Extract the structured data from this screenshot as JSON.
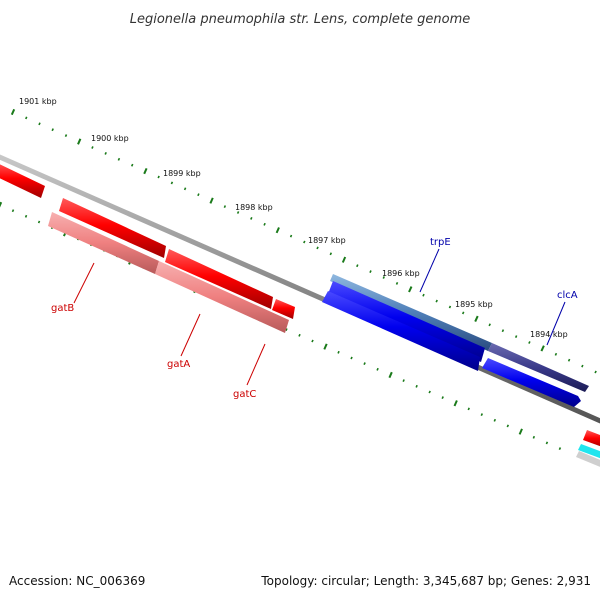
{
  "title": "Legionella pneumophila str. Lens, complete genome",
  "footer": {
    "accession": "Accession: NC_006369",
    "summary": "Topology: circular; Length: 3,345,687 bp; Genes: 2,931"
  },
  "ruler": {
    "unit": "kbp",
    "ticks": [
      {
        "label": "1901 kbp"
      },
      {
        "label": "1900 kbp"
      },
      {
        "label": "1899 kbp"
      },
      {
        "label": "1898 kbp"
      },
      {
        "label": "1897 kbp"
      },
      {
        "label": "1896 kbp"
      },
      {
        "label": "1895 kbp"
      },
      {
        "label": "1894 kbp"
      }
    ]
  },
  "genes": [
    {
      "name": "gatB",
      "color": "#cc0000"
    },
    {
      "name": "gatA",
      "color": "#cc0000"
    },
    {
      "name": "gatC",
      "color": "#cc0000"
    },
    {
      "name": "trpE",
      "color": "#0000aa"
    },
    {
      "name": "clcA",
      "color": "#0000aa"
    }
  ],
  "colors": {
    "forward_cds": "#ff0000",
    "forward_cds_dark": "#cc0000",
    "rna_like": "#ef8080",
    "reverse_cds": "#0000ee",
    "reverse_cds_dark": "#2c2c80",
    "backbone": "#888888",
    "tick": "#1a7a1a",
    "cyan_feature": "#22e5ee"
  }
}
